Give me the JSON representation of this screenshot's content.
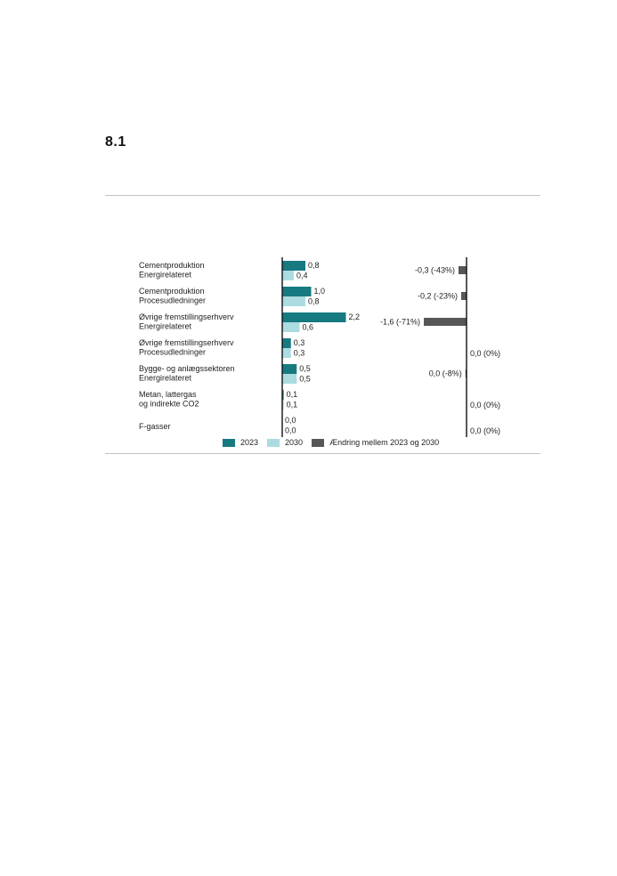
{
  "section": {
    "number": "8.1"
  },
  "chart_data": {
    "type": "bar",
    "orientation": "horizontal",
    "categories": [
      [
        "Cementproduktion",
        "Energirelateret"
      ],
      [
        "Cementproduktion",
        "Procesudledninger"
      ],
      [
        "Øvrige fremstillingserhverv",
        "Energirelateret"
      ],
      [
        "Øvrige fremstillingserhverv",
        "Procesudledninger"
      ],
      [
        "Bygge- og anlægssektoren",
        "Energirelateret"
      ],
      [
        "Metan, lattergas",
        " og indirekte CO2"
      ],
      [
        "F-gasser"
      ]
    ],
    "series": [
      {
        "name": "2023",
        "color": "#177a80",
        "values": [
          0.8,
          1.0,
          2.2,
          0.3,
          0.5,
          0.05,
          0.0
        ],
        "labels": [
          "0,8",
          "1,0",
          "2,2",
          "0,3",
          "0,5",
          "0,1",
          "0,0"
        ]
      },
      {
        "name": "2030",
        "color": "#acdbe1",
        "values": [
          0.4,
          0.8,
          0.6,
          0.3,
          0.5,
          0.05,
          0.0
        ],
        "labels": [
          "0,4",
          "0,8",
          "0,6",
          "0,3",
          "0,5",
          "0,1",
          "0,0"
        ]
      },
      {
        "name": "Ændring mellem 2023 og 2030",
        "color": "#575757",
        "values": [
          -0.3,
          -0.2,
          -1.6,
          0.0,
          -0.04,
          0.0,
          0.0
        ],
        "labels": [
          "-0,3 (-43%)",
          "-0,2 (-23%)",
          "-1,6 (-71%)",
          "0,0 (0%)",
          "0,0 (-8%)",
          "0,0 (0%)",
          "0,0 (0%)"
        ]
      }
    ],
    "legend_position": "bottom",
    "grid": false
  }
}
